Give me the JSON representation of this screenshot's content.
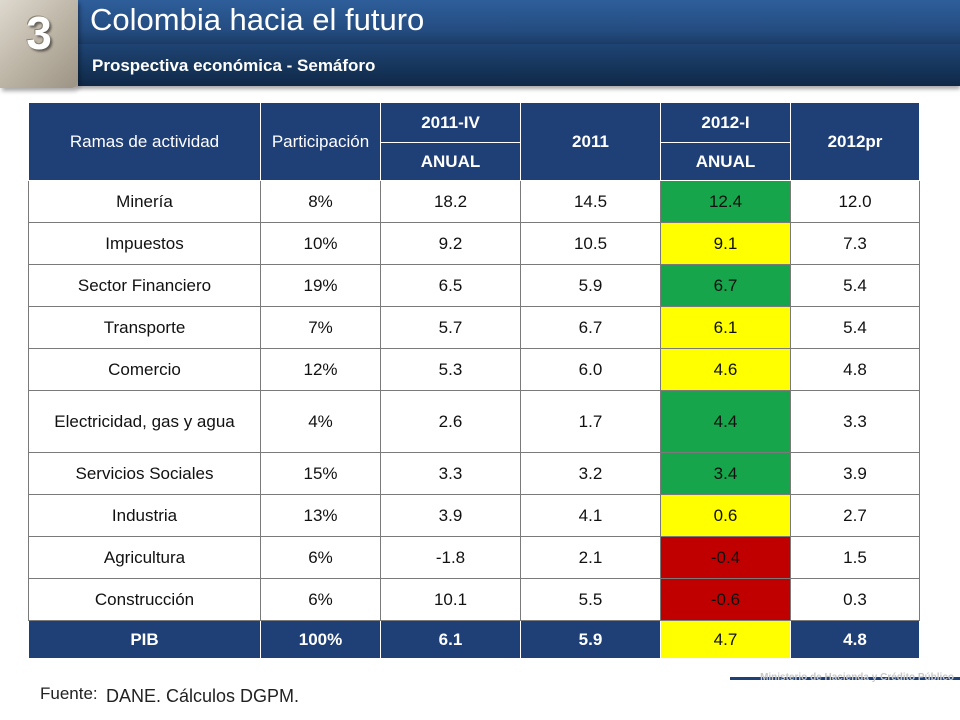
{
  "header": {
    "number": "3",
    "title": "Colombia hacia el futuro",
    "subtitle": "Prospectiva económica - Semáforo"
  },
  "table": {
    "headers": {
      "col1": "Ramas de actividad",
      "col2": "Participación",
      "col3": "2011-IV",
      "col4": "2011",
      "col5": "2012-I",
      "col6": "2012pr",
      "sub3": "ANUAL",
      "sub5": "ANUAL"
    },
    "rows": [
      {
        "name": "Minería",
        "part": "8%",
        "q2011iv": "18.2",
        "y2011": "14.5",
        "q2012i": "12.4",
        "y2012pr": "12.0",
        "status": "green"
      },
      {
        "name": "Impuestos",
        "part": "10%",
        "q2011iv": "9.2",
        "y2011": "10.5",
        "q2012i": "9.1",
        "y2012pr": "7.3",
        "status": "yellow"
      },
      {
        "name": "Sector Financiero",
        "part": "19%",
        "q2011iv": "6.5",
        "y2011": "5.9",
        "q2012i": "6.7",
        "y2012pr": "5.4",
        "status": "green"
      },
      {
        "name": "Transporte",
        "part": "7%",
        "q2011iv": "5.7",
        "y2011": "6.7",
        "q2012i": "6.1",
        "y2012pr": "5.4",
        "status": "yellow"
      },
      {
        "name": "Comercio",
        "part": "12%",
        "q2011iv": "5.3",
        "y2011": "6.0",
        "q2012i": "4.6",
        "y2012pr": "4.8",
        "status": "yellow"
      },
      {
        "name": "Electricidad, gas y agua",
        "part": "4%",
        "q2011iv": "2.6",
        "y2011": "1.7",
        "q2012i": "4.4",
        "y2012pr": "3.3",
        "status": "green"
      },
      {
        "name": "Servicios Sociales",
        "part": "15%",
        "q2011iv": "3.3",
        "y2011": "3.2",
        "q2012i": "3.4",
        "y2012pr": "3.9",
        "status": "green"
      },
      {
        "name": "Industria",
        "part": "13%",
        "q2011iv": "3.9",
        "y2011": "4.1",
        "q2012i": "0.6",
        "y2012pr": "2.7",
        "status": "yellow"
      },
      {
        "name": "Agricultura",
        "part": "6%",
        "q2011iv": "-1.8",
        "y2011": "2.1",
        "q2012i": "-0.4",
        "y2012pr": "1.5",
        "status": "red"
      },
      {
        "name": "Construcción",
        "part": "6%",
        "q2011iv": "10.1",
        "y2011": "5.5",
        "q2012i": "-0.6",
        "y2012pr": "0.3",
        "status": "red"
      }
    ],
    "total": {
      "name": "PIB",
      "part": "100%",
      "q2011iv": "6.1",
      "y2011": "5.9",
      "q2012i": "4.7",
      "y2012pr": "4.8",
      "status": "yellow"
    }
  },
  "status_colors": {
    "green": "#16a54a",
    "yellow": "#ffff00",
    "red": "#c00000"
  },
  "footer": {
    "ministry": "Ministerio de Hacienda y Crédito Público",
    "source_label": "Fuente:",
    "source_text": "DANE. Cálculos DGPM."
  }
}
